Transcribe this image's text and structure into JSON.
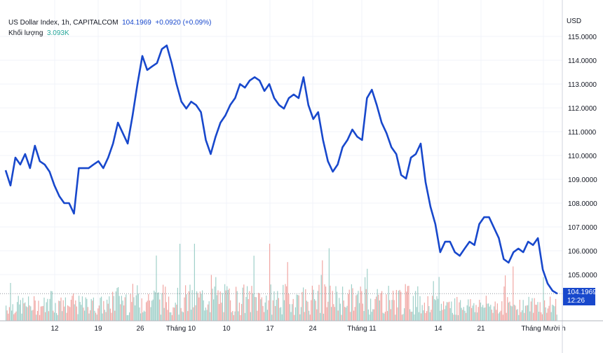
{
  "legend": {
    "symbol": "US Dollar Index, 1h, CAPITALCOM",
    "last": "104.1969",
    "change": "+0.0920 (+0.09%)",
    "volume_label": "Khối lượng",
    "volume_value": "3.093K"
  },
  "price_tag": {
    "price": "104.1969",
    "countdown": "12:26"
  },
  "colors": {
    "line": "#1848cc",
    "vol_up": "#9fd0c9",
    "vol_down": "#f1a7a4",
    "grid": "#f0f3fa"
  },
  "chart_data": {
    "type": "line",
    "title": "US Dollar Index, 1h, CAPITALCOM",
    "ylabel": "USD",
    "ylim": [
      103.2,
      115.7
    ],
    "yticks": [
      "115.0000",
      "114.0000",
      "113.0000",
      "112.0000",
      "111.0000",
      "110.0000",
      "109.0000",
      "108.0000",
      "107.0000",
      "106.0000",
      "105.0000"
    ],
    "xticks": [
      "12",
      "19",
      "26",
      "Tháng 10",
      "10",
      "17",
      "24",
      "Tháng 11",
      "14",
      "21",
      "Tháng Mười h"
    ],
    "grid": true,
    "series": [
      {
        "values": [
          109.38,
          108.74,
          109.91,
          109.62,
          110.06,
          109.47,
          110.41,
          109.76,
          109.62,
          109.32,
          108.74,
          108.29,
          108.0,
          108.0,
          107.56,
          109.47,
          109.47,
          109.47,
          109.62,
          109.76,
          109.47,
          109.91,
          110.5,
          111.38,
          110.94,
          110.5,
          111.68,
          113.0,
          114.18,
          113.59,
          113.74,
          113.88,
          114.47,
          114.62,
          113.88,
          113.0,
          112.26,
          111.97,
          112.26,
          112.12,
          111.82,
          110.65,
          110.06,
          110.79,
          111.38,
          111.68,
          112.12,
          112.41,
          113.0,
          112.85,
          113.15,
          113.29,
          113.15,
          112.71,
          113.0,
          112.41,
          112.12,
          111.97,
          112.41,
          112.56,
          112.41,
          113.29,
          112.12,
          111.53,
          111.82,
          110.65,
          109.76,
          109.32,
          109.62,
          110.35,
          110.65,
          111.09,
          110.79,
          110.65,
          112.41,
          112.76,
          112.12,
          111.38,
          110.94,
          110.35,
          110.06,
          109.18,
          109.03,
          109.91,
          110.06,
          110.5,
          108.88,
          107.85,
          107.12,
          105.94,
          106.38,
          106.38,
          105.94,
          105.79,
          106.09,
          106.38,
          106.24,
          107.12,
          107.41,
          107.41,
          106.97,
          106.53,
          105.65,
          105.5,
          105.94,
          106.09,
          105.94,
          106.38,
          106.24,
          106.53,
          105.21,
          104.62,
          104.32,
          104.1969
        ]
      }
    ]
  }
}
